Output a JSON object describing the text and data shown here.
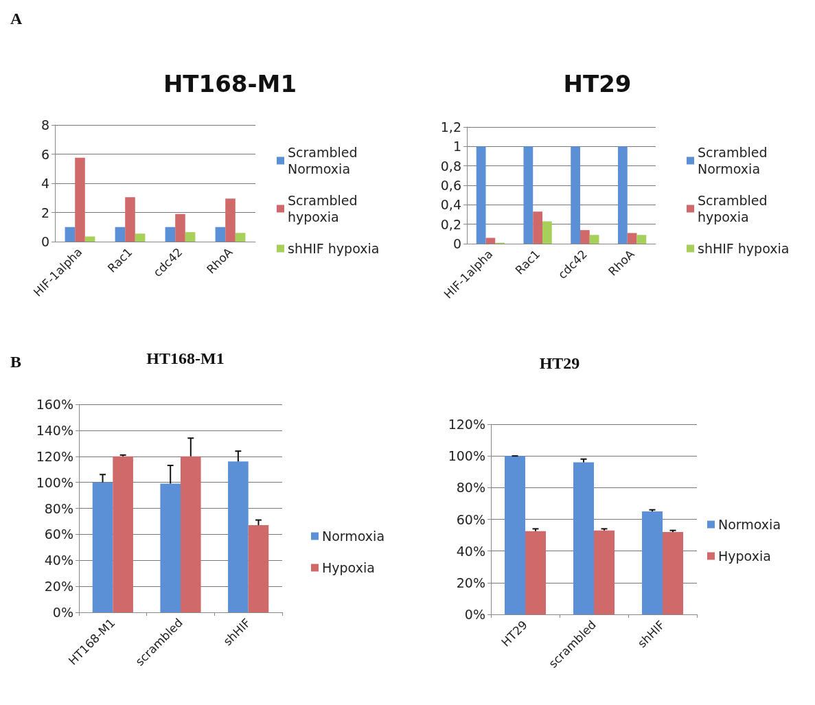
{
  "chart_data": [
    {
      "type": "bar",
      "title": "HT168-M1",
      "annotations": [
        "A"
      ],
      "categories": [
        "HIF-1alpha",
        "Rac1",
        "cdc42",
        "RhoA"
      ],
      "series": [
        {
          "name": "Scrambled Normoxia",
          "color": "#5b8fd6",
          "values": [
            1,
            1,
            1,
            1
          ]
        },
        {
          "name": "Scrambled hypoxia",
          "color": "#d06a6a",
          "values": [
            5.75,
            3.05,
            1.9,
            2.95
          ]
        },
        {
          "name": "shHIF hypoxia",
          "color": "#a6d05a",
          "values": [
            0.35,
            0.55,
            0.65,
            0.6
          ]
        }
      ],
      "ylim": [
        0,
        8
      ],
      "yticks": [
        0,
        2,
        4,
        6,
        8
      ],
      "grid": "y",
      "legend": "right"
    },
    {
      "type": "bar",
      "title": "HT29",
      "categories": [
        "HIF-1alpha",
        "Rac1",
        "cdc42",
        "RhoA"
      ],
      "series": [
        {
          "name": "Scrambled Normoxia",
          "color": "#5b8fd6",
          "values": [
            1,
            1,
            1,
            1
          ]
        },
        {
          "name": "Scrambled hypoxia",
          "color": "#d06a6a",
          "values": [
            0.06,
            0.33,
            0.14,
            0.11
          ]
        },
        {
          "name": "shHIF hypoxia",
          "color": "#a6d05a",
          "values": [
            0.01,
            0.23,
            0.09,
            0.09
          ]
        }
      ],
      "ylim": [
        0,
        1.2
      ],
      "yticks": [
        0,
        {
          "value": 0.2,
          "label": "0,2"
        },
        {
          "value": 0.4,
          "label": "0,4"
        },
        {
          "value": 0.6,
          "label": "0,6"
        },
        {
          "value": 0.8,
          "label": "0,8"
        },
        1,
        {
          "value": 1.2,
          "label": "1,2"
        }
      ],
      "grid": "y",
      "legend": "right"
    },
    {
      "type": "bar",
      "title": "HT168-M1",
      "annotations": [
        "B"
      ],
      "categories": [
        "HT168-M1",
        "scrambled",
        "shHIF"
      ],
      "series": [
        {
          "name": "Normoxia",
          "color": "#5b8fd6",
          "values": [
            100,
            99,
            116
          ],
          "errors": [
            [
              100,
              106
            ],
            [
              99,
              113
            ],
            [
              116,
              124
            ]
          ]
        },
        {
          "name": "Hypoxia",
          "color": "#d06a6a",
          "values": [
            120,
            120,
            67
          ],
          "errors": [
            [
              120,
              121
            ],
            [
              120,
              134
            ],
            [
              67,
              71
            ]
          ]
        }
      ],
      "ylim": [
        0,
        160
      ],
      "yticks": [
        {
          "value": 0,
          "label": "0%"
        },
        {
          "value": 20,
          "label": "20%"
        },
        {
          "value": 40,
          "label": "40%"
        },
        {
          "value": 60,
          "label": "60%"
        },
        {
          "value": 80,
          "label": "80%"
        },
        {
          "value": 100,
          "label": "100%"
        },
        {
          "value": 120,
          "label": "120%"
        },
        {
          "value": 140,
          "label": "140%"
        },
        {
          "value": 160,
          "label": "160%"
        }
      ],
      "grid": "y",
      "legend": "right"
    },
    {
      "type": "bar",
      "title": "HT29",
      "categories": [
        "HT29",
        "scrambled",
        "shHIF"
      ],
      "series": [
        {
          "name": "Normoxia",
          "color": "#5b8fd6",
          "values": [
            100,
            96,
            65
          ],
          "errors": [
            [
              100,
              100
            ],
            [
              96,
              98
            ],
            [
              65,
              66
            ]
          ]
        },
        {
          "name": "Hypoxia",
          "color": "#d06a6a",
          "values": [
            52.5,
            53,
            52
          ],
          "errors": [
            [
              52.5,
              54
            ],
            [
              53,
              54
            ],
            [
              52,
              53
            ]
          ]
        }
      ],
      "ylim": [
        0,
        120
      ],
      "yticks": [
        {
          "value": 0,
          "label": "0%"
        },
        {
          "value": 20,
          "label": "20%"
        },
        {
          "value": 40,
          "label": "40%"
        },
        {
          "value": 60,
          "label": "60%"
        },
        {
          "value": 80,
          "label": "80%"
        },
        {
          "value": 100,
          "label": "100%"
        },
        {
          "value": 120,
          "label": "120%"
        }
      ],
      "grid": "y",
      "legend": "right"
    }
  ]
}
